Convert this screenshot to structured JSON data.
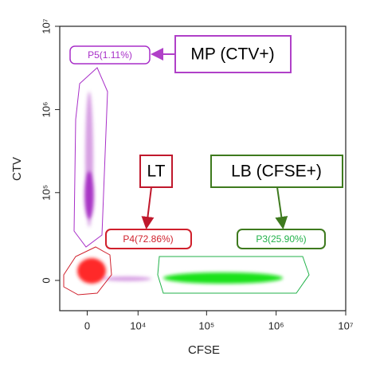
{
  "chart_data": {
    "type": "flow-cytometry-dot-plot",
    "x_label": "CFSE",
    "y_label": "CTV",
    "scale": "biexponential",
    "xlim": [
      -4000,
      10000000
    ],
    "ylim": [
      -16700,
      10000000
    ],
    "xticks": [
      0,
      {
        "value": 10000,
        "label": "10⁴"
      },
      {
        "value": 100000,
        "label": "10⁵"
      },
      {
        "value": 1000000,
        "label": "10⁶"
      },
      {
        "value": 10000000,
        "label": "10⁷"
      }
    ],
    "yticks": [
      0,
      {
        "value": 100000,
        "label": "10⁵"
      },
      {
        "value": 1000000,
        "label": "10⁶"
      },
      {
        "value": 10000000,
        "label": "10⁷"
      }
    ],
    "gates": [
      {
        "label": "P5(1.11%)",
        "color": "#a82fc8"
      },
      {
        "label": "P4(72.86%)",
        "color": "#d0202c"
      },
      {
        "label": "P3(25.90%)",
        "color": "#22b24a"
      }
    ],
    "annotations": [
      {
        "text": "MP (CTV+)",
        "color": "#b040c8"
      },
      {
        "text": "LT",
        "color": "#c0182c"
      },
      {
        "text": "LB (CFSE+)",
        "color": "#3e7a1e"
      }
    ]
  }
}
